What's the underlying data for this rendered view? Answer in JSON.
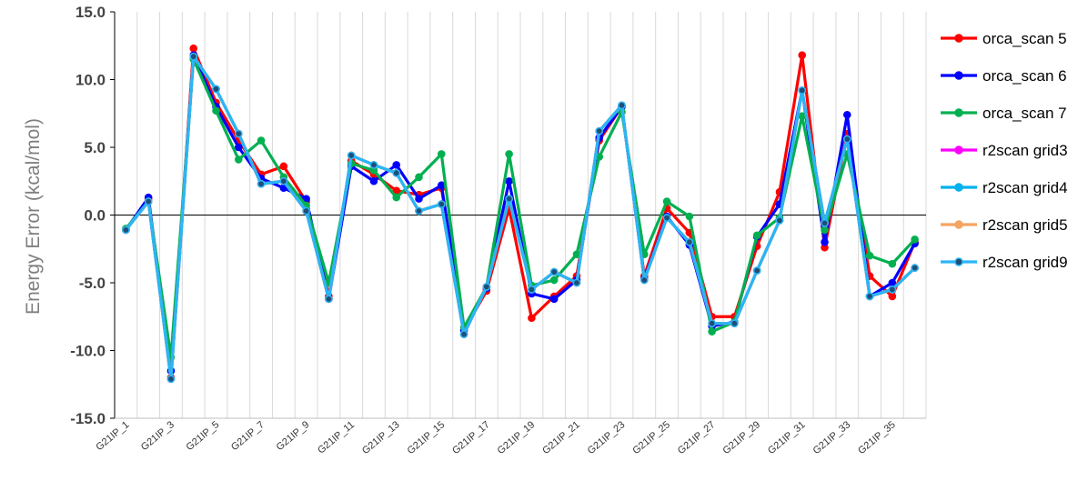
{
  "chart_data": {
    "type": "line",
    "title": "",
    "xlabel": "",
    "ylabel": "Energy Error (kcal/mol)",
    "ylim": [
      -15,
      15
    ],
    "yticks": [
      "15.0",
      "10.0",
      "5.0",
      "0.0",
      "-5.0",
      "-10.0",
      "-15.0"
    ],
    "ytick_values": [
      15,
      10,
      5,
      0,
      -5,
      -10,
      -15
    ],
    "grid": "vertical",
    "legend_position": "right",
    "categories": [
      "G21IP_1",
      "G21IP_2",
      "G21IP_3",
      "G21IP_4",
      "G21IP_5",
      "G21IP_6",
      "G21IP_7",
      "G21IP_8",
      "G21IP_9",
      "G21IP_10",
      "G21IP_11",
      "G21IP_12",
      "G21IP_13",
      "G21IP_14",
      "G21IP_15",
      "G21IP_16",
      "G21IP_17",
      "G21IP_18",
      "G21IP_19",
      "G21IP_20",
      "G21IP_21",
      "G21IP_22",
      "G21IP_23",
      "G21IP_24",
      "G21IP_25",
      "G21IP_26",
      "G21IP_27",
      "G21IP_28",
      "G21IP_29",
      "G21IP_30",
      "G21IP_31",
      "G21IP_32",
      "G21IP_33",
      "G21IP_34",
      "G21IP_35",
      "G21IP_36"
    ],
    "shown_tick_labels": [
      "G21IP_1",
      "G21IP_3",
      "G21IP_5",
      "G21IP_7",
      "G21IP_9",
      "G21IP_11",
      "G21IP_13",
      "G21IP_15",
      "G21IP_17",
      "G21IP_19",
      "G21IP_21",
      "G21IP_23",
      "G21IP_25",
      "G21IP_27",
      "G21IP_29",
      "G21IP_31",
      "G21IP_33",
      "G21IP_35"
    ],
    "series": [
      {
        "name": "orca_scan 5",
        "color": "#ff0000",
        "values": [
          -1.1,
          1.2,
          -12.0,
          12.3,
          8.3,
          5.5,
          3.0,
          3.6,
          1.0,
          -6.0,
          4.0,
          3.0,
          1.8,
          1.5,
          2.0,
          -8.5,
          -5.6,
          0.5,
          -7.6,
          -6.0,
          -4.5,
          5.5,
          8.0,
          -4.5,
          0.5,
          -1.3,
          -7.5,
          -7.5,
          -2.3,
          1.7,
          11.8,
          -2.4,
          6.0,
          -4.5,
          -6.0,
          -2.0
        ]
      },
      {
        "name": "orca_scan 6",
        "color": "#0000ff",
        "values": [
          -1.1,
          1.3,
          -11.5,
          11.8,
          8.0,
          5.0,
          2.7,
          2.0,
          1.2,
          -6.2,
          3.6,
          2.5,
          3.7,
          1.2,
          2.2,
          -8.5,
          -5.4,
          2.5,
          -5.8,
          -6.2,
          -4.8,
          5.7,
          8.0,
          -4.7,
          -0.1,
          -2.2,
          -8.2,
          -7.9,
          -1.6,
          0.8,
          9.2,
          -2.0,
          7.4,
          -6.0,
          -5.0,
          -2.1
        ]
      },
      {
        "name": "orca_scan 7",
        "color": "#00b050",
        "values": [
          -1.0,
          1.0,
          -10.5,
          11.5,
          7.7,
          4.1,
          5.5,
          2.8,
          0.7,
          -5.0,
          3.8,
          3.3,
          1.3,
          2.8,
          4.5,
          -8.3,
          -5.3,
          4.5,
          -5.2,
          -4.8,
          -2.9,
          4.3,
          7.6,
          -2.9,
          1.0,
          -0.1,
          -8.6,
          -7.9,
          -1.5,
          -0.2,
          7.3,
          -1.1,
          4.5,
          -3.0,
          -3.6,
          -1.8
        ]
      },
      {
        "name": "r2scan grid3",
        "color": "#ff00ff",
        "values": [
          -1.1,
          1.0,
          -12.1,
          11.7,
          9.3,
          6.0,
          2.3,
          2.5,
          0.3,
          -6.2,
          4.4,
          3.7,
          3.1,
          0.3,
          0.8,
          -8.8,
          -5.3,
          1.2,
          -5.5,
          -4.2,
          -5.0,
          6.2,
          8.1,
          -4.8,
          -0.2,
          -2.0,
          -8.0,
          -8.0,
          -4.1,
          -0.4,
          9.2,
          -0.6,
          5.6,
          -6.0,
          -5.5,
          -3.9
        ]
      },
      {
        "name": "r2scan grid4",
        "color": "#00b0f0",
        "values": [
          -1.1,
          1.0,
          -12.1,
          11.7,
          9.3,
          6.0,
          2.3,
          2.5,
          0.3,
          -6.2,
          4.4,
          3.7,
          3.1,
          0.3,
          0.8,
          -8.8,
          -5.3,
          1.2,
          -5.5,
          -4.2,
          -5.0,
          6.2,
          8.1,
          -4.8,
          -0.2,
          -2.0,
          -8.0,
          -8.0,
          -4.1,
          -0.4,
          9.2,
          -0.6,
          5.6,
          -6.0,
          -5.5,
          -3.9
        ]
      },
      {
        "name": "r2scan grid5",
        "color": "#f4a460",
        "values": [
          -1.1,
          1.0,
          -12.1,
          11.7,
          9.3,
          6.0,
          2.3,
          2.5,
          0.3,
          -6.2,
          4.4,
          3.7,
          3.1,
          0.3,
          0.8,
          -8.8,
          -5.3,
          1.2,
          -5.5,
          -4.2,
          -5.0,
          6.2,
          8.1,
          -4.8,
          -0.2,
          -2.0,
          -8.0,
          -8.0,
          -4.1,
          -0.4,
          9.2,
          -0.6,
          5.6,
          -6.0,
          -5.5,
          -3.9
        ]
      },
      {
        "name": "r2scan grid9",
        "color": "#29b6f6",
        "marker_color": "#1f4e79",
        "values": [
          -1.1,
          1.0,
          -12.1,
          11.7,
          9.3,
          6.0,
          2.3,
          2.5,
          0.3,
          -6.2,
          4.4,
          3.7,
          3.1,
          0.3,
          0.8,
          -8.8,
          -5.3,
          1.2,
          -5.5,
          -4.2,
          -5.0,
          6.2,
          8.1,
          -4.8,
          -0.2,
          -2.0,
          -8.0,
          -8.0,
          -4.1,
          -0.4,
          9.2,
          -0.6,
          5.6,
          -6.0,
          -5.5,
          -3.9
        ]
      }
    ]
  }
}
